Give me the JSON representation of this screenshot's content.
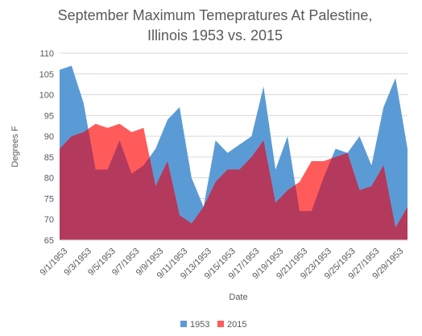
{
  "chart_data": {
    "type": "area",
    "title_lines": [
      "September Maximum Temepratures At Palestine,",
      "Illinois  1953 vs. 2015"
    ],
    "xlabel": "Date",
    "ylabel": "Degrees F",
    "ylim": [
      65,
      110
    ],
    "yticks": [
      65,
      70,
      75,
      80,
      85,
      90,
      95,
      100,
      105,
      110
    ],
    "x": [
      "9/1/1953",
      "9/2/1953",
      "9/3/1953",
      "9/4/1953",
      "9/5/1953",
      "9/6/1953",
      "9/7/1953",
      "9/8/1953",
      "9/9/1953",
      "9/10/1953",
      "9/11/1953",
      "9/12/1953",
      "9/13/1953",
      "9/14/1953",
      "9/15/1953",
      "9/16/1953",
      "9/17/1953",
      "9/18/1953",
      "9/19/1953",
      "9/20/1953",
      "9/21/1953",
      "9/22/1953",
      "9/23/1953",
      "9/24/1953",
      "9/25/1953",
      "9/26/1953",
      "9/27/1953",
      "9/28/1953",
      "9/29/1953",
      "9/30/1953"
    ],
    "x_tick_labels": [
      "9/1/1953",
      "9/3/1953",
      "9/5/1953",
      "9/7/1953",
      "9/9/1953",
      "9/11/1953",
      "9/13/1953",
      "9/15/1953",
      "9/17/1953",
      "9/19/1953",
      "9/21/1953",
      "9/23/1953",
      "9/25/1953",
      "9/27/1953",
      "9/29/1953"
    ],
    "series": [
      {
        "name": "1953",
        "color": "#5b9bd5",
        "values": [
          106,
          107,
          98,
          82,
          82,
          89,
          81,
          83,
          87,
          94,
          97,
          80,
          73,
          89,
          86,
          88,
          90,
          102,
          82,
          90,
          72,
          72,
          80,
          87,
          86,
          90,
          83,
          97,
          104,
          87
        ]
      },
      {
        "name": "2015",
        "color": "#ff5b5b",
        "values": [
          87,
          90,
          91,
          93,
          92,
          93,
          91,
          92,
          78,
          84,
          71,
          69,
          73,
          79,
          82,
          82,
          85,
          89,
          74,
          77,
          79,
          84,
          84,
          85,
          86,
          77,
          78,
          83,
          68,
          73
        ]
      }
    ],
    "overlap_color": "#b33a5c",
    "grid": true,
    "legend_position": "bottom"
  }
}
